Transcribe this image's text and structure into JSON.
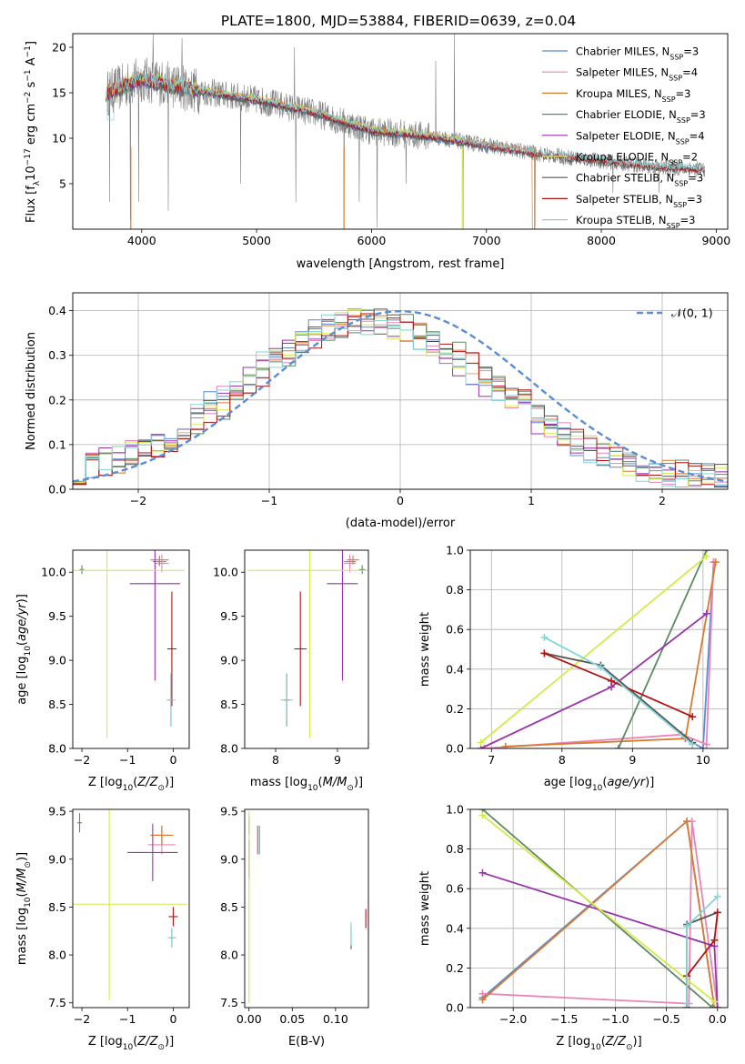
{
  "figure": {
    "title": "PLATE=1800, MJD=53884, FIBERID=0639, z=0.04"
  },
  "colors": {
    "Chabrier MILES": "#5b8cd4",
    "Salpeter MILES": "#e985b5",
    "Kroupa MILES": "#d97b2f",
    "Chabrier ELODIE": "#5c8b62",
    "Salpeter ELODIE": "#9933aa",
    "Kroupa ELODIE": "#d6ea4a",
    "Chabrier STELIB": "#555555",
    "Salpeter STELIB": "#b01414",
    "Kroupa STELIB": "#84d4d8",
    "data": "#808080",
    "gauss": "#5b8cd4"
  },
  "chart_data": [
    {
      "type": "line",
      "panel": "spectrum",
      "xlabel": "wavelength [Angstrom, rest frame]",
      "ylabel": "Flux [f_λ10^-17 erg cm^-2 s^-1 A^-1]",
      "xlim": [
        3400,
        9100
      ],
      "ylim": [
        0,
        21.5
      ],
      "xticks": [
        4000,
        5000,
        6000,
        7000,
        8000,
        9000
      ],
      "yticks": [
        5,
        10,
        15,
        20
      ],
      "legend_position": "top-right",
      "legend": [
        {
          "model": "Chabrier MILES",
          "n": "3"
        },
        {
          "model": "Salpeter MILES",
          "n": "4"
        },
        {
          "model": "Kroupa MILES",
          "n": "3"
        },
        {
          "model": "Chabrier ELODIE",
          "n": "3"
        },
        {
          "model": "Salpeter ELODIE",
          "n": "4"
        },
        {
          "model": "Kroupa ELODIE",
          "n": "2"
        },
        {
          "model": "Chabrier STELIB",
          "n": "3"
        },
        {
          "model": "Salpeter STELIB",
          "n": "3"
        },
        {
          "model": "Kroupa STELIB",
          "n": "3"
        }
      ],
      "continuum": {
        "x": [
          3700,
          4000,
          4500,
          5000,
          5500,
          6000,
          6500,
          7000,
          7500,
          8000,
          8500,
          8900
        ],
        "y": [
          15,
          16.5,
          15.2,
          14.2,
          12.8,
          10.8,
          10.2,
          9.2,
          8.2,
          7.5,
          6.8,
          6.6
        ]
      },
      "spikes_down": [
        [
          3720,
          3
        ],
        [
          3900,
          1
        ],
        [
          3970,
          3
        ],
        [
          4230,
          2
        ],
        [
          4861,
          5
        ],
        [
          5340,
          3
        ],
        [
          5760,
          0.3
        ],
        [
          5890,
          3
        ],
        [
          6050,
          0.2
        ],
        [
          6300,
          5
        ],
        [
          6800,
          0.2
        ],
        [
          7420,
          0.3
        ],
        [
          8100,
          4
        ],
        [
          8500,
          4
        ]
      ],
      "spikes_up": [
        [
          4100,
          21.5
        ],
        [
          4350,
          21
        ],
        [
          5330,
          20
        ],
        [
          6560,
          18.5
        ],
        [
          6720,
          21.5
        ],
        [
          8660,
          7.5
        ]
      ]
    },
    {
      "type": "line",
      "panel": "residuals",
      "xlabel": "(data-model)/error",
      "ylabel": "Normed distribution",
      "xlim": [
        -2.5,
        2.5
      ],
      "ylim": [
        0,
        0.44
      ],
      "xticks": [
        -2,
        -1,
        0,
        1,
        2
      ],
      "yticks": [
        0.0,
        0.1,
        0.2,
        0.3,
        0.4
      ],
      "legend": "𝒩(0, 1)",
      "legend_position": "top-right",
      "grid": true
    },
    {
      "type": "scatter",
      "panel": "age-Z",
      "xlabel": "Z [log10(Z/Z⊙)]",
      "ylabel": "age [log10(age/yr)]",
      "xlim": [
        -2.2,
        0.35
      ],
      "ylim": [
        8.0,
        10.25
      ],
      "xticks": [
        -2,
        -1,
        0
      ],
      "yticks": [
        8.0,
        8.5,
        9.0,
        9.5,
        10.0
      ],
      "points": [
        {
          "model": "Chabrier MILES",
          "x": -0.3,
          "y": 10.12,
          "xe": 0.15,
          "ye": 0.05
        },
        {
          "model": "Salpeter MILES",
          "x": -0.25,
          "y": 10.1,
          "xe": 0.15,
          "ye": 0.1
        },
        {
          "model": "Kroupa MILES",
          "x": -0.3,
          "y": 10.14,
          "xe": 0.2,
          "ye": 0.05
        },
        {
          "model": "Chabrier ELODIE",
          "x": -2.0,
          "y": 10.03,
          "xe": 0.05,
          "ye": 0.05
        },
        {
          "model": "Salpeter ELODIE",
          "x": -0.4,
          "y": 9.87,
          "xe": 0.55,
          "ye": 1.1
        },
        {
          "model": "Kroupa ELODIE",
          "x": -1.45,
          "y": 10.02,
          "xe": 1.7,
          "ye": 1.9
        },
        {
          "model": "Chabrier STELIB",
          "x": -0.05,
          "y": 8.55,
          "xe": 0.05,
          "ye": 0.3
        },
        {
          "model": "Salpeter STELIB",
          "x": -0.03,
          "y": 9.13,
          "xe": 0.1,
          "ye": 0.65
        },
        {
          "model": "Kroupa STELIB",
          "x": -0.05,
          "y": 8.55,
          "xe": 0.1,
          "ye": 0.3
        }
      ]
    },
    {
      "type": "scatter",
      "panel": "age-mass",
      "xlabel": "mass [log10(M/M⊙)]",
      "ylabel": "",
      "xlim": [
        7.5,
        9.5
      ],
      "ylim": [
        8.0,
        10.25
      ],
      "xticks": [
        8,
        9
      ],
      "yticks": [
        8.0,
        8.5,
        9.0,
        9.5,
        10.0
      ],
      "points": [
        {
          "model": "Chabrier MILES",
          "x": 9.2,
          "y": 10.12,
          "xe": 0.1,
          "ye": 0.05
        },
        {
          "model": "Salpeter MILES",
          "x": 9.2,
          "y": 10.1,
          "xe": 0.1,
          "ye": 0.1
        },
        {
          "model": "Kroupa MILES",
          "x": 9.25,
          "y": 10.14,
          "xe": 0.1,
          "ye": 0.05
        },
        {
          "model": "Chabrier ELODIE",
          "x": 9.4,
          "y": 10.03,
          "xe": 0.05,
          "ye": 0.05
        },
        {
          "model": "Salpeter ELODIE",
          "x": 9.08,
          "y": 9.87,
          "xe": 0.25,
          "ye": 1.1
        },
        {
          "model": "Kroupa ELODIE",
          "x": 8.55,
          "y": 10.02,
          "xe": 1.0,
          "ye": 1.9
        },
        {
          "model": "Chabrier STELIB",
          "x": 8.18,
          "y": 8.55,
          "xe": 0.05,
          "ye": 0.3
        },
        {
          "model": "Salpeter STELIB",
          "x": 8.4,
          "y": 9.13,
          "xe": 0.1,
          "ye": 0.65
        },
        {
          "model": "Kroupa STELIB",
          "x": 8.18,
          "y": 8.55,
          "xe": 0.1,
          "ye": 0.3
        }
      ]
    },
    {
      "type": "line",
      "panel": "mass-weight-vs-age",
      "xlabel": "age [log10(age/yr)]",
      "ylabel": "mass weight",
      "xlim": [
        6.7,
        10.35
      ],
      "ylim": [
        0.0,
        1.0
      ],
      "xticks": [
        7,
        8,
        9,
        10
      ],
      "yticks": [
        0.0,
        0.2,
        0.4,
        0.6,
        0.8,
        1.0
      ],
      "grid": true,
      "series": [
        {
          "model": "Chabrier MILES",
          "x": [
            9.75,
            10.0,
            10.15
          ],
          "y": [
            0.05,
            0.0,
            0.94
          ]
        },
        {
          "model": "Salpeter MILES",
          "x": [
            6.9,
            9.7,
            10.05,
            10.15
          ],
          "y": [
            0.0,
            0.07,
            0.02,
            0.94
          ]
        },
        {
          "model": "Kroupa MILES",
          "x": [
            7.2,
            9.75,
            10.18
          ],
          "y": [
            0.01,
            0.05,
            0.94
          ]
        },
        {
          "model": "Chabrier ELODIE",
          "x": [
            8.8,
            10.05
          ],
          "y": [
            0.0,
            1.0
          ]
        },
        {
          "model": "Salpeter ELODIE",
          "x": [
            6.85,
            8.7,
            10.05
          ],
          "y": [
            0.0,
            0.31,
            0.68
          ]
        },
        {
          "model": "Kroupa ELODIE",
          "x": [
            6.85,
            10.05
          ],
          "y": [
            0.03,
            0.97
          ]
        },
        {
          "model": "Chabrier STELIB",
          "x": [
            7.75,
            8.55,
            9.85
          ],
          "y": [
            0.48,
            0.42,
            0.03
          ]
        },
        {
          "model": "Salpeter STELIB",
          "x": [
            7.75,
            8.7,
            9.85
          ],
          "y": [
            0.48,
            0.34,
            0.16
          ]
        },
        {
          "model": "Kroupa STELIB",
          "x": [
            7.75,
            8.55,
            9.85
          ],
          "y": [
            0.56,
            0.41,
            0.02
          ]
        }
      ]
    },
    {
      "type": "scatter",
      "panel": "mass-Z",
      "xlabel": "Z [log10(Z/Z⊙)]",
      "ylabel": "mass [log10(M/M⊙)]",
      "xlim": [
        -2.2,
        0.35
      ],
      "ylim": [
        7.45,
        9.52
      ],
      "xticks": [
        -2,
        -1,
        0
      ],
      "yticks": [
        7.5,
        8.0,
        8.5,
        9.0,
        9.5
      ],
      "points": [
        {
          "model": "Chabrier MILES",
          "x": -0.25,
          "y": 9.25,
          "xe": 0.15,
          "ye": 0.1
        },
        {
          "model": "Salpeter MILES",
          "x": -0.25,
          "y": 9.15,
          "xe": 0.3,
          "ye": 0.1
        },
        {
          "model": "Kroupa MILES",
          "x": -0.25,
          "y": 9.25,
          "xe": 0.25,
          "ye": 0.1
        },
        {
          "model": "Chabrier ELODIE",
          "x": -2.05,
          "y": 9.38,
          "xe": 0.05,
          "ye": 0.1
        },
        {
          "model": "Salpeter ELODIE",
          "x": -0.45,
          "y": 9.07,
          "xe": 0.55,
          "ye": 0.3
        },
        {
          "model": "Kroupa ELODIE",
          "x": -1.4,
          "y": 8.53,
          "xe": 1.7,
          "ye": 1.0
        },
        {
          "model": "Chabrier STELIB",
          "x": -0.03,
          "y": 8.18,
          "xe": 0.05,
          "ye": 0.1
        },
        {
          "model": "Salpeter STELIB",
          "x": 0.0,
          "y": 8.4,
          "xe": 0.1,
          "ye": 0.1
        },
        {
          "model": "Kroupa STELIB",
          "x": -0.03,
          "y": 8.18,
          "xe": 0.1,
          "ye": 0.1
        }
      ]
    },
    {
      "type": "scatter",
      "panel": "mass-EBV",
      "xlabel": "E(B-V)",
      "ylabel": "",
      "xlim": [
        -0.005,
        0.138
      ],
      "ylim": [
        7.45,
        9.52
      ],
      "xticks": [
        0.0,
        0.05,
        0.1
      ],
      "yticks": [
        7.5,
        8.0,
        8.5,
        9.0,
        9.5
      ],
      "points": [
        {
          "model": "Chabrier MILES",
          "x": 0.012,
          "y": 9.2,
          "ye": 0.15
        },
        {
          "model": "Salpeter MILES",
          "x": 0.01,
          "y": 9.2,
          "ye": 0.15
        },
        {
          "model": "Kroupa MILES",
          "x": 0.01,
          "y": 9.2,
          "ye": 0.15
        },
        {
          "model": "Chabrier ELODIE",
          "x": 0.0,
          "y": 9.35,
          "ye": 0.1
        },
        {
          "model": "Salpeter ELODIE",
          "x": 0.0,
          "y": 9.0,
          "ye": 0.2
        },
        {
          "model": "Kroupa ELODIE",
          "x": 0.0,
          "y": 8.5,
          "ye": 1.0
        },
        {
          "model": "Chabrier STELIB",
          "x": 0.118,
          "y": 8.18,
          "ye": 0.12
        },
        {
          "model": "Salpeter STELIB",
          "x": 0.135,
          "y": 8.38,
          "ye": 0.1
        },
        {
          "model": "Kroupa STELIB",
          "x": 0.118,
          "y": 8.22,
          "ye": 0.12
        }
      ]
    },
    {
      "type": "line",
      "panel": "mass-weight-vs-Z",
      "xlabel": "Z [log10(Z/Z⊙)]",
      "ylabel": "mass weight",
      "xlim": [
        -2.42,
        0.1
      ],
      "ylim": [
        0.0,
        1.0
      ],
      "xticks": [
        -2.0,
        -1.5,
        -1.0,
        -0.5,
        0.0
      ],
      "yticks": [
        0.0,
        0.2,
        0.4,
        0.6,
        0.8,
        1.0
      ],
      "grid": true,
      "series": [
        {
          "model": "Chabrier MILES",
          "x": [
            -2.3,
            -0.3,
            -0.03
          ],
          "y": [
            0.05,
            0.94,
            0.0
          ]
        },
        {
          "model": "Salpeter MILES",
          "x": [
            -2.3,
            -0.28,
            -0.25,
            0.0
          ],
          "y": [
            0.07,
            0.02,
            0.94,
            0.0
          ]
        },
        {
          "model": "Kroupa MILES",
          "x": [
            -2.3,
            -0.3,
            -0.03
          ],
          "y": [
            0.04,
            0.94,
            0.0
          ]
        },
        {
          "model": "Chabrier ELODIE",
          "x": [
            -2.3,
            -0.05
          ],
          "y": [
            1.0,
            0.0
          ]
        },
        {
          "model": "Salpeter ELODIE",
          "x": [
            -2.3,
            -0.03,
            0.0
          ],
          "y": [
            0.68,
            0.31,
            0.0
          ]
        },
        {
          "model": "Kroupa ELODIE",
          "x": [
            -2.3,
            -0.03
          ],
          "y": [
            0.97,
            0.03
          ]
        },
        {
          "model": "Chabrier STELIB",
          "x": [
            -0.3,
            -0.3,
            0.0
          ],
          "y": [
            0.0,
            0.42,
            0.48
          ]
        },
        {
          "model": "Salpeter STELIB",
          "x": [
            -0.3,
            -0.03,
            0.0
          ],
          "y": [
            0.16,
            0.34,
            0.48
          ]
        },
        {
          "model": "Kroupa STELIB",
          "x": [
            -0.3,
            -0.3,
            0.0
          ],
          "y": [
            0.02,
            0.41,
            0.56
          ]
        }
      ]
    }
  ]
}
